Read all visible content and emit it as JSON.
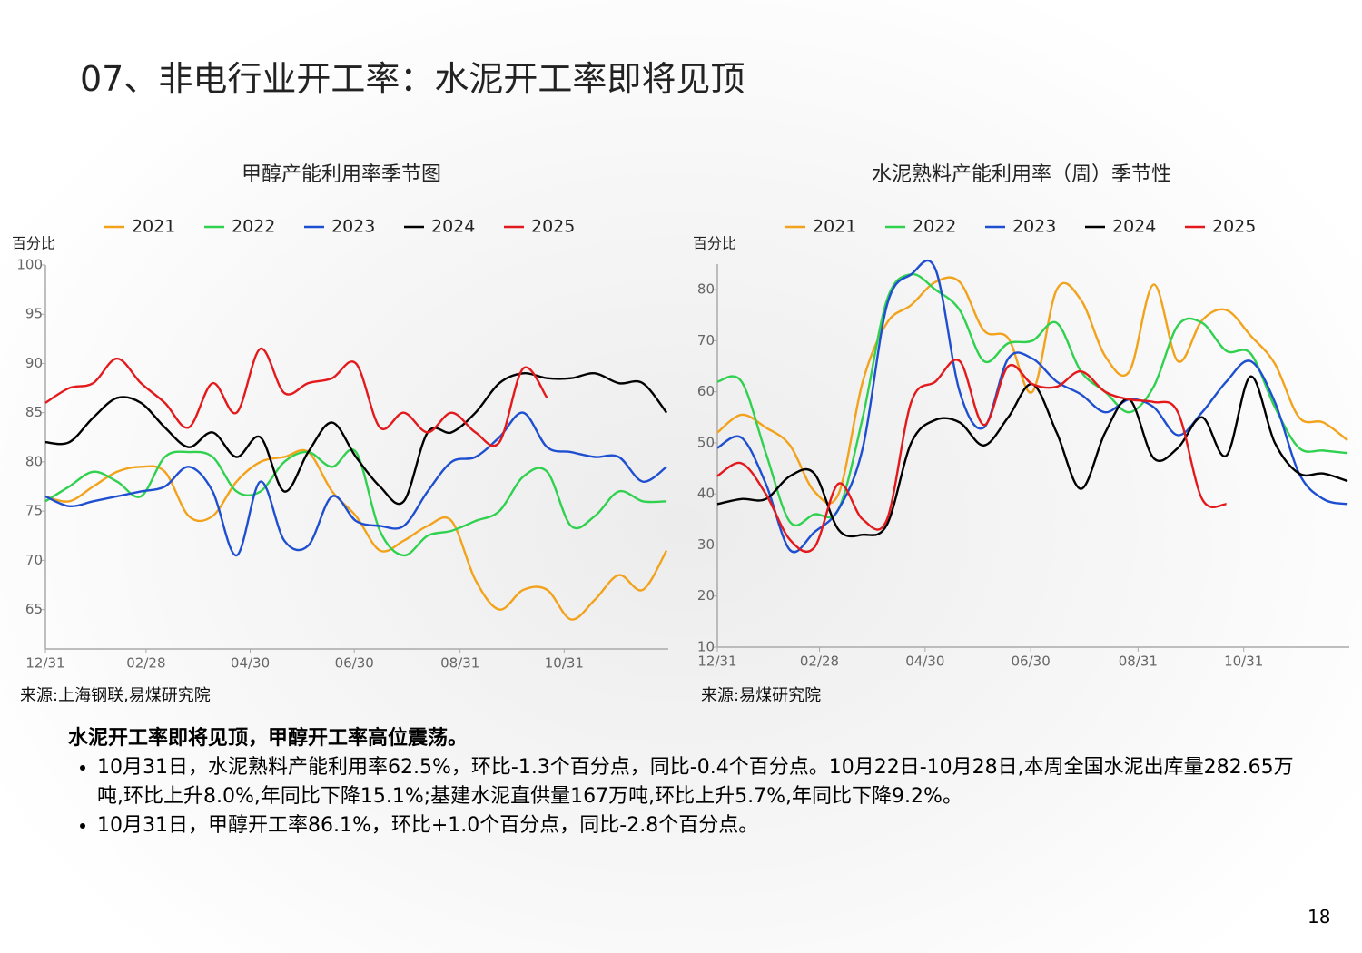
{
  "header": {
    "title": "07、非电行业开工率：水泥开工率即将见顶"
  },
  "chart_data": [
    {
      "type": "line",
      "title": "甲醇产能利用率季节图",
      "y_label": "百分比",
      "source": "来源:上海钢联,易煤研究院",
      "x": [
        0,
        14,
        28,
        42,
        56,
        70,
        84,
        98,
        112,
        126,
        140,
        154,
        168,
        182,
        196,
        210,
        224,
        238,
        252,
        266,
        280,
        294,
        308,
        322,
        336,
        350,
        364
      ],
      "xlim": [
        0,
        365
      ],
      "xticks": [
        {
          "value": 0,
          "label": "12/31"
        },
        {
          "value": 59,
          "label": "02/28"
        },
        {
          "value": 120,
          "label": "04/30"
        },
        {
          "value": 181,
          "label": "06/30"
        },
        {
          "value": 243,
          "label": "08/31"
        },
        {
          "value": 304,
          "label": "10/31"
        }
      ],
      "ylim": [
        61,
        100
      ],
      "yticks": [
        65,
        70,
        75,
        80,
        85,
        90,
        95,
        100
      ],
      "series": [
        {
          "name": "2021",
          "color": "#f2a21b",
          "values": [
            76.5,
            76,
            77.5,
            79,
            79.5,
            79,
            74.5,
            74.5,
            78,
            80,
            80.5,
            81,
            77,
            74.5,
            71,
            72,
            73.5,
            74,
            68,
            65,
            67,
            67,
            64,
            66,
            68.5,
            67,
            71
          ]
        },
        {
          "name": "2022",
          "color": "#2fd14f",
          "values": [
            76,
            77.5,
            79,
            78,
            76.5,
            80.5,
            81,
            80.5,
            77,
            77,
            80,
            81,
            79.5,
            81,
            73,
            70.5,
            72.5,
            73,
            74,
            75,
            78.5,
            79,
            73.5,
            74.5,
            77,
            76,
            76
          ]
        },
        {
          "name": "2023",
          "color": "#1f4fd1",
          "values": [
            76.5,
            75.5,
            76,
            76.5,
            77,
            77.5,
            79.5,
            77,
            70.5,
            78,
            72,
            71.5,
            76.5,
            74,
            73.5,
            73.5,
            77,
            80,
            80.5,
            82.5,
            85,
            81.5,
            81,
            80.5,
            80.5,
            78,
            79.5
          ]
        },
        {
          "name": "2024",
          "color": "#000000",
          "values": [
            82,
            82,
            84.5,
            86.5,
            86,
            83.5,
            81.5,
            83,
            80.5,
            82.5,
            77,
            81,
            84,
            80.5,
            77.5,
            76,
            83,
            83,
            85,
            88,
            89,
            88.5,
            88.5,
            89,
            88,
            88,
            85
          ]
        },
        {
          "name": "2025",
          "color": "#e3191c",
          "values": [
            86,
            87.5,
            88,
            90.5,
            88,
            86,
            83.5,
            88,
            85,
            91.5,
            87,
            88,
            88.5,
            90,
            83.5,
            85,
            83,
            85,
            83,
            82,
            89.5,
            86.5,
            null,
            null,
            null,
            null,
            null
          ]
        }
      ]
    },
    {
      "type": "line",
      "title": "水泥熟料产能利用率（周）季节性",
      "y_label": "百分比",
      "source": "来源:易煤研究院",
      "x": [
        0,
        14,
        28,
        42,
        56,
        70,
        84,
        98,
        112,
        126,
        140,
        154,
        168,
        182,
        196,
        210,
        224,
        238,
        252,
        266,
        280,
        294,
        308,
        322,
        336,
        350,
        364
      ],
      "xlim": [
        0,
        365
      ],
      "xticks": [
        {
          "value": 0,
          "label": "12/31"
        },
        {
          "value": 59,
          "label": "02/28"
        },
        {
          "value": 120,
          "label": "04/30"
        },
        {
          "value": 181,
          "label": "06/30"
        },
        {
          "value": 243,
          "label": "08/31"
        },
        {
          "value": 304,
          "label": "10/31"
        }
      ],
      "ylim": [
        10,
        85
      ],
      "yticks": [
        10,
        20,
        30,
        40,
        50,
        60,
        70,
        80
      ],
      "series": [
        {
          "name": "2021",
          "color": "#f2a21b",
          "values": [
            52,
            55.5,
            53,
            49.5,
            40.5,
            40,
            62,
            73.5,
            77,
            81.5,
            81.5,
            72,
            70.5,
            60,
            80,
            78,
            67,
            64,
            81,
            66,
            74,
            76,
            71,
            65.5,
            55,
            54,
            50.5
          ]
        },
        {
          "name": "2022",
          "color": "#2fd14f",
          "values": [
            62,
            62,
            48,
            34.5,
            36,
            37,
            55,
            78,
            83,
            80,
            76,
            66,
            69.5,
            70,
            73.5,
            64,
            60,
            56,
            61,
            73,
            73.5,
            68,
            67.5,
            57,
            49,
            48.5,
            48
          ]
        },
        {
          "name": "2023",
          "color": "#1f4fd1",
          "values": [
            49,
            51,
            42,
            29,
            32.5,
            37,
            49,
            77,
            83,
            84,
            60,
            53,
            66.5,
            66.5,
            62,
            59.5,
            56,
            58.5,
            57,
            51.5,
            56,
            62,
            66,
            58,
            44,
            39,
            38
          ]
        },
        {
          "name": "2024",
          "color": "#000000",
          "values": [
            38,
            39,
            39,
            43.5,
            44,
            33,
            32,
            34,
            50,
            54.5,
            54,
            49.5,
            55,
            61.5,
            52,
            41,
            52,
            58.5,
            47,
            49,
            55,
            47.5,
            63,
            50,
            44,
            44,
            42.5
          ]
        },
        {
          "name": "2025",
          "color": "#e3191c",
          "values": [
            43.5,
            46,
            40,
            31,
            29.5,
            42,
            35,
            35,
            58,
            62,
            66,
            53.5,
            65,
            61.5,
            61,
            64,
            60,
            58.5,
            58,
            56,
            39,
            38,
            null,
            null,
            null,
            null,
            null
          ]
        }
      ]
    }
  ],
  "summary": {
    "heading": "水泥开工率即将见顶，甲醇开工率高位震荡。",
    "bullets": [
      "10月31日，水泥熟料产能利用率62.5%，环比-1.3个百分点，同比-0.4个百分点。10月22日-10月28日,本周全国水泥出库量282.65万吨,环比上升8.0%,年同比下降15.1%;基建水泥直供量167万吨,环比上升5.7%,年同比下降9.2%。",
      "10月31日，甲醇开工率86.1%，环比+1.0个百分点，同比-2.8个百分点。"
    ]
  },
  "page_number": 18
}
